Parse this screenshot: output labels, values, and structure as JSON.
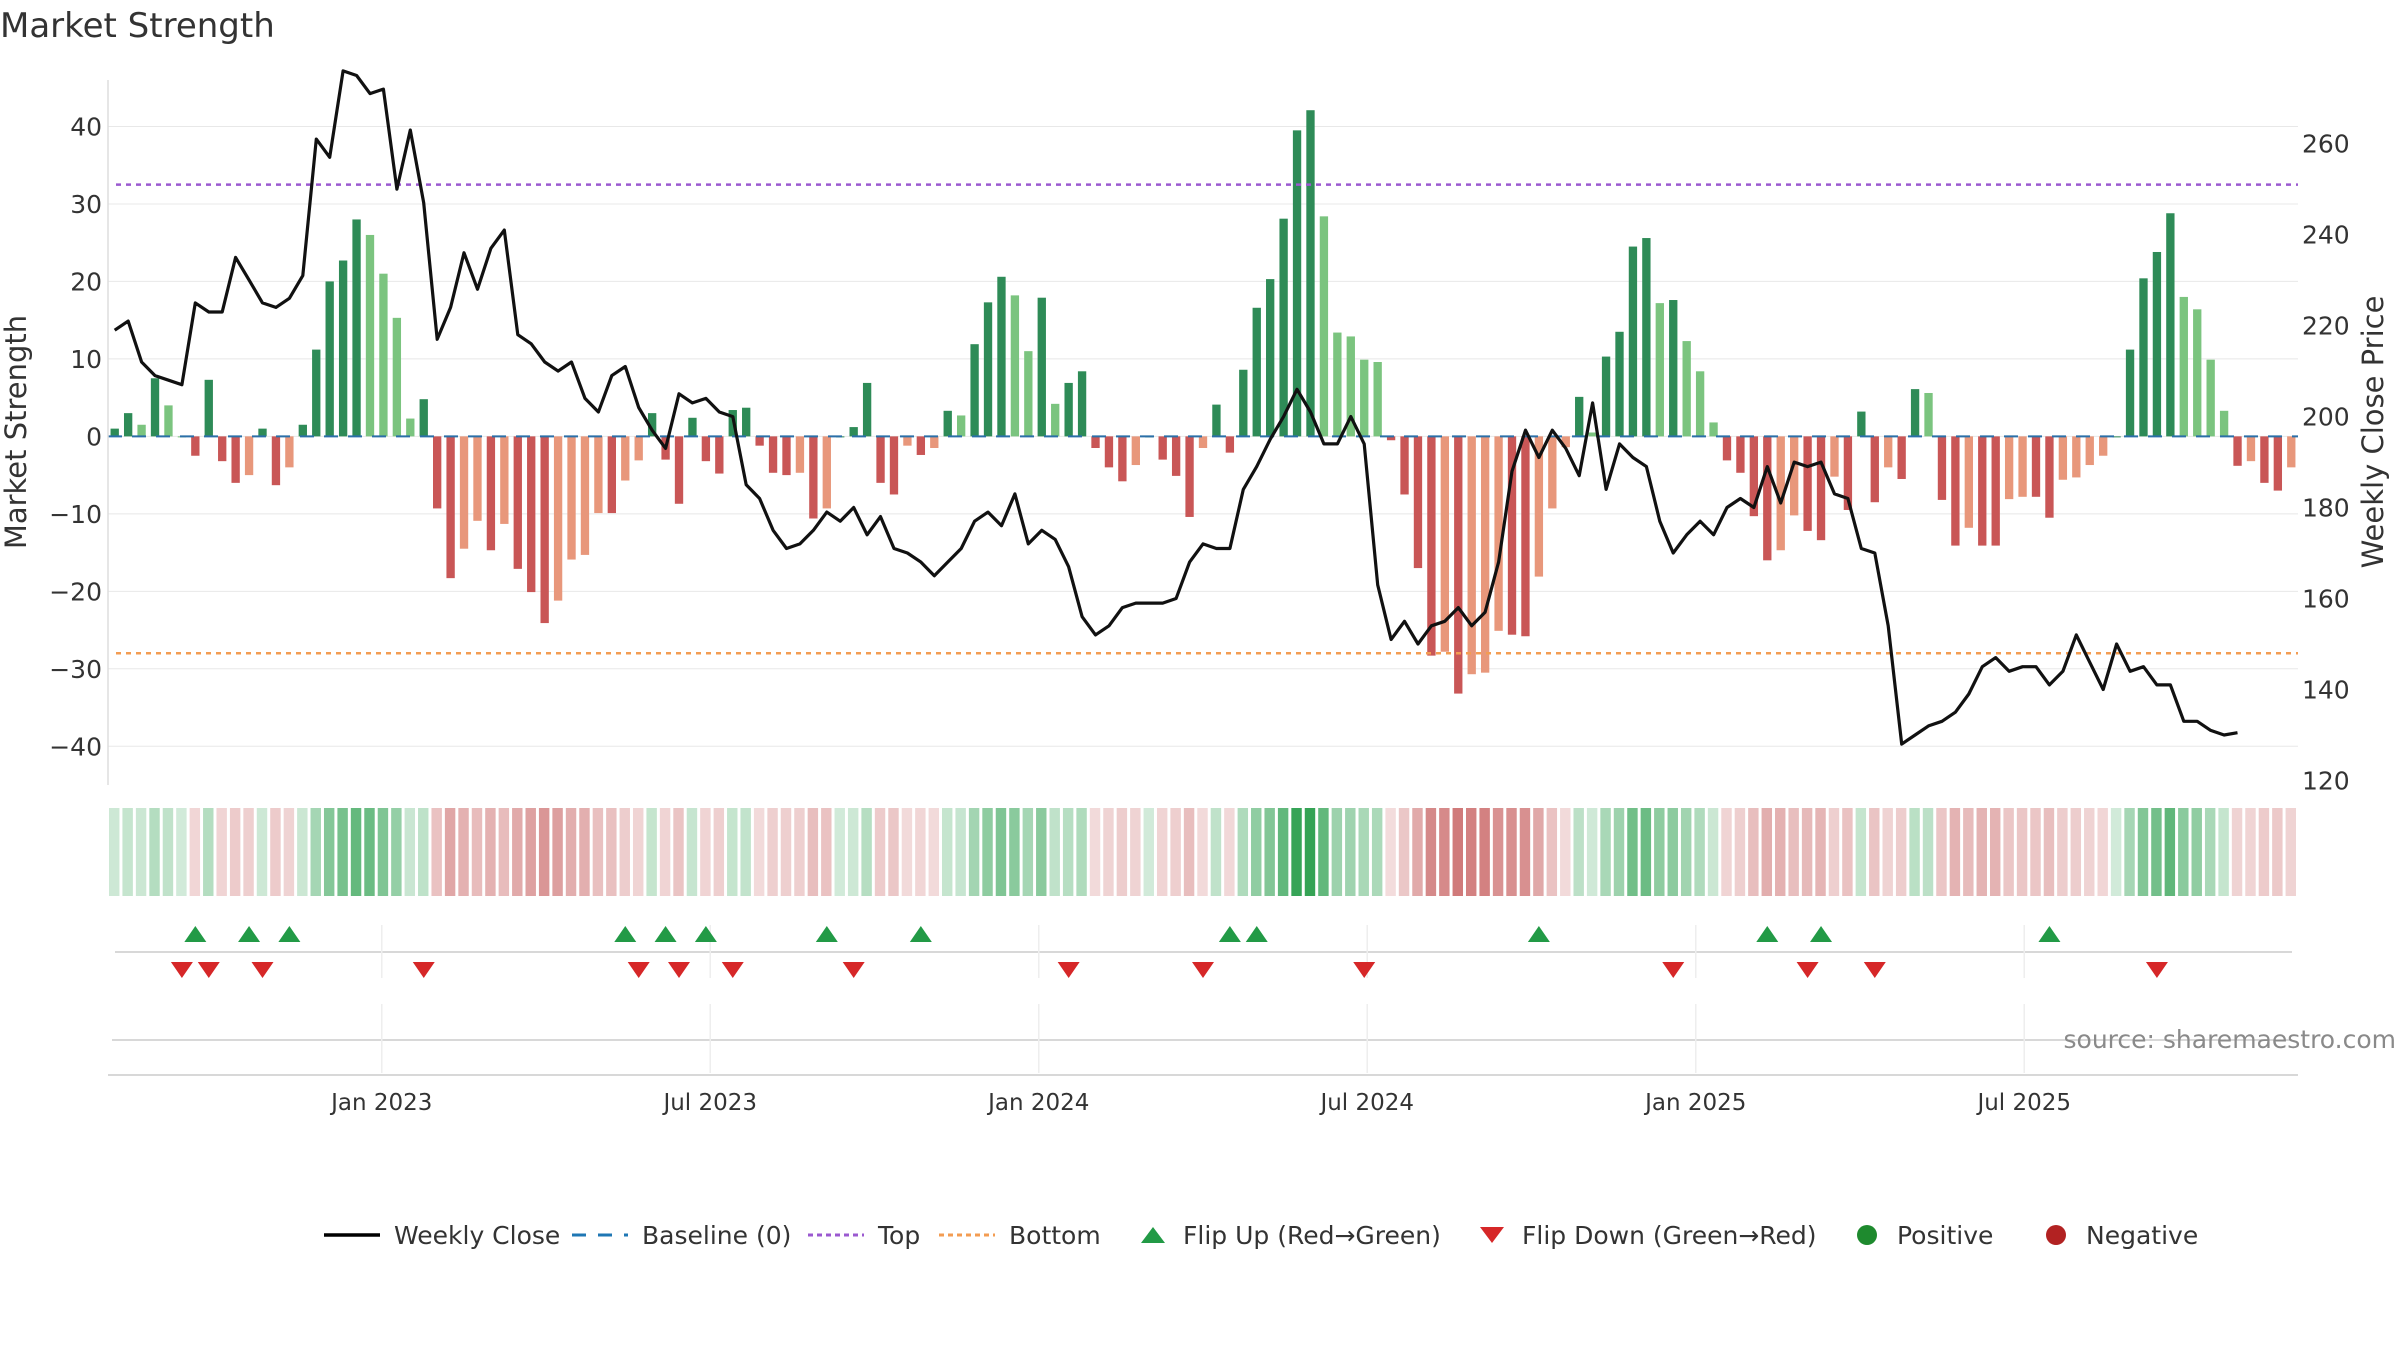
{
  "title": "Market Strength",
  "source": "source: sharemaestro.com",
  "chart_data": {
    "type": "bar",
    "title": "Market Strength",
    "ylabel_left": "Market Strength",
    "ylabel_right": "Weekly Close Price",
    "ylim_left": [
      -45,
      46
    ],
    "ylim_right": [
      119,
      274
    ],
    "yticks_left": [
      40,
      30,
      20,
      10,
      0,
      -10,
      -20,
      -30,
      -40
    ],
    "yticks_left_labels": [
      "40",
      "30",
      "20",
      "10",
      "0",
      "−10",
      "−20",
      "−30",
      "−40"
    ],
    "yticks_right": [
      260,
      240,
      220,
      200,
      180,
      160,
      140,
      120
    ],
    "top_level": 32.5,
    "bottom_level": -28,
    "x_months_start": "2022-08",
    "x_months_end": "2025-11",
    "xticks": [
      {
        "label": "Jan 2023",
        "month": 5
      },
      {
        "label": "Jul 2023",
        "month": 11
      },
      {
        "label": "Jan 2024",
        "month": 17
      },
      {
        "label": "Jul 2024",
        "month": 23
      },
      {
        "label": "Jan 2025",
        "month": 29
      },
      {
        "label": "Jul 2025",
        "month": 35
      }
    ],
    "strength": [
      1,
      3,
      1.5,
      7.5,
      4,
      0,
      -2.5,
      7.3,
      -3.2,
      -6,
      -5,
      1,
      -6.3,
      -4,
      1.5,
      11.2,
      20,
      22.7,
      28,
      26,
      21,
      15.3,
      2.3,
      4.8,
      -9.3,
      -18.3,
      -14.5,
      -10.9,
      -14.7,
      -11.3,
      -17.1,
      -20.1,
      -24.1,
      -21.2,
      -15.9,
      -15.3,
      -9.9,
      -9.9,
      -5.7,
      -3.1,
      3,
      -3,
      -8.7,
      2.4,
      -3.2,
      -4.8,
      3.4,
      3.7,
      -1.2,
      -4.7,
      -5,
      -4.7,
      -10.6,
      -9.3,
      0,
      1.2,
      6.9,
      -6,
      -7.5,
      -1.2,
      -2.4,
      -1.5,
      3.3,
      2.7,
      11.9,
      17.3,
      20.6,
      18.2,
      11,
      17.9,
      4.2,
      6.9,
      8.4,
      -1.5,
      -4,
      -5.8,
      -3.7,
      0,
      -3,
      -5.1,
      -10.4,
      -1.5,
      4.1,
      -2.1,
      8.6,
      16.6,
      20.3,
      28.1,
      39.5,
      42.1,
      28.4,
      13.4,
      12.9,
      9.9,
      9.6,
      -0.5,
      -7.5,
      -17,
      -28.3,
      -27.8,
      -33.2,
      -30.7,
      -30.5,
      -25.1,
      -25.6,
      -25.8,
      -18.1,
      -9.3,
      -1.4,
      5.1,
      0.5,
      10.3,
      13.5,
      24.5,
      25.6,
      17.2,
      17.6,
      12.3,
      8.4,
      1.8,
      -3.1,
      -4.7,
      -10.3,
      -16,
      -14.7,
      -10.2,
      -12.2,
      -13.4,
      -5.2,
      -9.5,
      3.2,
      -8.5,
      -4,
      -5.5,
      6.1,
      5.6,
      -8.2,
      -14.1,
      -11.8,
      -14.1,
      -14.1,
      -8.1,
      -7.8,
      -7.8,
      -10.5,
      -5.6,
      -5.3,
      -3.7,
      -2.5,
      0,
      11.2,
      20.4,
      23.8,
      28.8,
      18,
      16.4,
      9.9,
      3.3,
      -3.8,
      -3.2,
      -6,
      -7,
      -4
    ],
    "weekly_close": [
      219,
      221,
      212,
      209,
      208,
      207,
      225,
      223,
      223,
      235,
      230,
      225,
      224,
      226,
      231,
      261,
      257,
      276,
      275,
      271,
      272,
      250,
      263,
      247,
      217,
      224,
      236,
      228,
      237,
      241,
      218,
      216,
      212,
      210,
      212,
      204,
      201,
      209,
      211,
      202,
      197,
      193,
      205,
      203,
      204,
      201,
      200,
      185,
      182,
      175,
      171,
      172,
      175,
      179,
      177,
      180,
      174,
      178,
      171,
      170,
      168,
      165,
      168,
      171,
      177,
      179,
      176,
      183,
      172,
      175,
      173,
      167,
      156,
      152,
      154,
      158,
      159,
      159,
      159,
      160,
      168,
      172,
      171,
      171,
      184,
      189,
      195,
      200,
      206,
      201,
      194,
      194,
      200,
      194,
      163,
      151,
      155,
      150,
      154,
      155,
      158,
      154,
      157,
      168,
      188,
      197,
      191,
      197,
      193,
      187,
      203,
      184,
      194,
      191,
      189,
      177,
      170,
      174,
      177,
      174,
      180,
      182,
      180,
      189,
      181,
      190,
      189,
      190,
      183,
      182,
      171,
      170,
      154,
      128,
      130,
      132,
      133,
      135,
      139,
      145,
      147,
      144,
      145,
      145,
      141,
      144,
      152,
      146,
      140,
      150,
      144,
      145,
      141,
      141,
      133,
      133,
      131,
      130,
      130.5
    ],
    "flip_up_weeks": [
      6,
      10,
      13,
      38,
      41,
      44,
      53,
      60,
      83,
      85,
      106,
      123,
      127,
      144
    ],
    "flip_down_weeks": [
      5,
      7,
      11,
      23,
      39,
      42,
      46,
      55,
      71,
      81,
      93,
      116,
      126,
      131,
      152
    ],
    "legend": [
      {
        "label": "Weekly Close",
        "color": "#000000",
        "kind": "line"
      },
      {
        "label": "Baseline (0)",
        "color": "#1f77b4",
        "kind": "dash"
      },
      {
        "label": "Top",
        "color": "#9b59d0",
        "kind": "dot"
      },
      {
        "label": "Bottom",
        "color": "#f39c52",
        "kind": "dot"
      },
      {
        "label": "Flip Up (Red→Green)",
        "color": "#229a46",
        "kind": "up"
      },
      {
        "label": "Flip Down (Green→Red)",
        "color": "#d62728",
        "kind": "down"
      },
      {
        "label": "Positive",
        "color": "#1e8a2e",
        "kind": "dot-circle"
      },
      {
        "label": "Negative",
        "color": "#b22222",
        "kind": "dot-circle"
      }
    ]
  }
}
